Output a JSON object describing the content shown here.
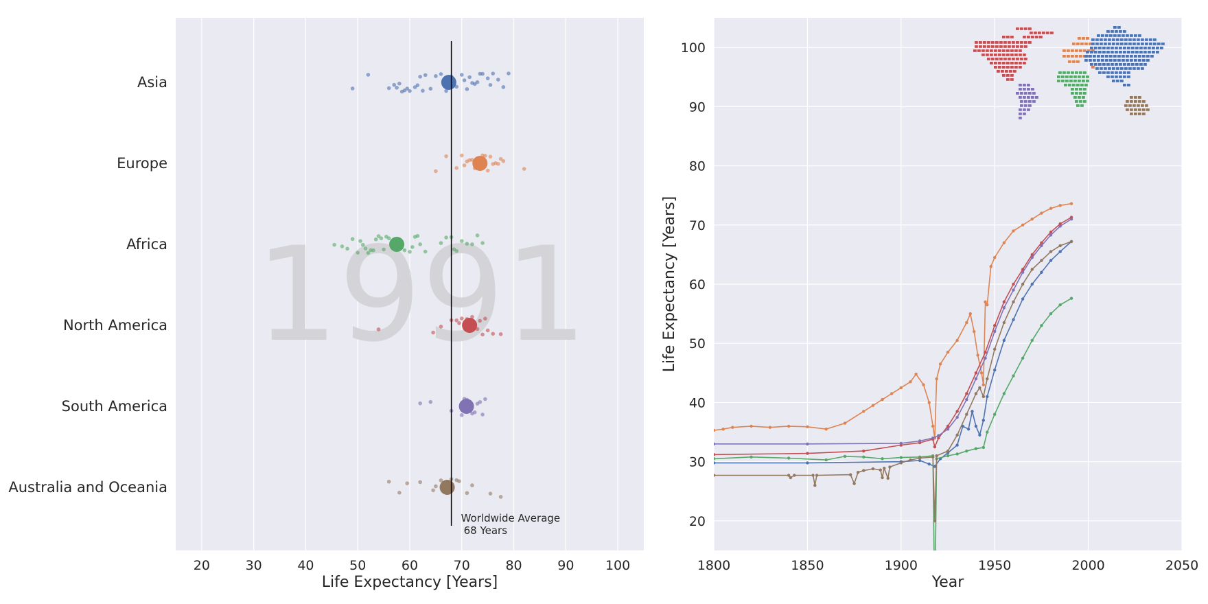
{
  "chart_data": [
    {
      "type": "scatter",
      "subtype": "strip-plot",
      "watermark": "1991",
      "xlabel": "Life Expectancy [Years]",
      "ylabel": "",
      "xlim": [
        15,
        105
      ],
      "xticks": [
        "20",
        "30",
        "40",
        "50",
        "60",
        "70",
        "80",
        "90",
        "100"
      ],
      "grid": true,
      "categories": [
        "Asia",
        "Europe",
        "Africa",
        "North America",
        "South America",
        "Australia and Oceania"
      ],
      "colors": [
        "#4c72b0",
        "#dd8452",
        "#55a868",
        "#c44e52",
        "#8172b3",
        "#937860"
      ],
      "means": [
        67.5,
        73.5,
        57.5,
        71.5,
        70.9,
        67.2
      ],
      "points": [
        [
          49,
          52,
          56,
          57,
          57.5,
          58,
          58.5,
          59,
          59.5,
          60,
          61,
          61.5,
          62,
          62.5,
          63,
          64,
          65,
          66,
          67,
          68,
          69,
          70,
          70.5,
          71,
          71.5,
          72,
          72.5,
          73,
          73.5,
          74,
          75,
          75.5,
          76,
          77,
          78,
          79
        ],
        [
          65,
          67,
          69,
          70,
          70.5,
          71,
          71.5,
          72,
          72.5,
          73,
          73.5,
          74,
          74.5,
          75,
          75.5,
          76,
          76.5,
          77,
          77.5,
          78,
          82
        ],
        [
          45.5,
          47,
          48,
          49,
          50,
          50.5,
          51,
          51.5,
          52,
          52.5,
          53,
          53.5,
          54,
          54.5,
          55,
          55.5,
          56,
          56.5,
          57,
          58,
          59,
          60,
          60.5,
          61,
          61.5,
          62,
          63,
          66,
          67,
          68,
          68.5,
          69,
          70,
          71,
          72,
          73,
          74
        ],
        [
          54,
          64.5,
          66,
          68,
          69,
          69.5,
          70,
          70.5,
          71,
          71.5,
          72,
          72.5,
          73,
          73.5,
          74,
          74.5,
          75,
          76,
          77.5
        ],
        [
          62,
          64,
          68,
          70,
          70.5,
          71,
          71.5,
          72,
          72.5,
          73,
          73.5,
          74,
          74.5
        ],
        [
          56,
          58,
          59.5,
          62,
          64.5,
          65,
          66,
          67,
          68,
          69,
          69.5,
          71,
          72,
          75.5,
          77.5
        ]
      ],
      "reference_line": {
        "x": 68,
        "label_line1": "Worldwide Average",
        "label_line2": "68 Years"
      }
    },
    {
      "type": "line",
      "xlabel": "Year",
      "ylabel": "Life Expectancy [Years]",
      "xlim": [
        1800,
        2050
      ],
      "ylim": [
        15,
        105
      ],
      "xticks": [
        "1800",
        "1850",
        "1900",
        "1950",
        "2000",
        "2050"
      ],
      "yticks": [
        "20",
        "30",
        "40",
        "50",
        "60",
        "70",
        "80",
        "90",
        "100"
      ],
      "grid": true,
      "legend": "inset world map, top-right (continent shapes in series colors)",
      "series": [
        {
          "color": "#4c72b0",
          "points": [
            [
              1800,
              29.8
            ],
            [
              1850,
              29.8
            ],
            [
              1900,
              30.0
            ],
            [
              1910,
              30.2
            ],
            [
              1915,
              29.6
            ],
            [
              1918,
              29.2
            ],
            [
              1921,
              30.5
            ],
            [
              1925,
              31.5
            ],
            [
              1930,
              32.8
            ],
            [
              1933,
              36.0
            ],
            [
              1936,
              35.5
            ],
            [
              1938,
              38.5
            ],
            [
              1940,
              36.0
            ],
            [
              1942,
              34.5
            ],
            [
              1944,
              37.0
            ],
            [
              1946,
              41.0
            ],
            [
              1950,
              45.5
            ],
            [
              1955,
              50.5
            ],
            [
              1960,
              54.0
            ],
            [
              1965,
              57.5
            ],
            [
              1970,
              60.0
            ],
            [
              1975,
              62.0
            ],
            [
              1980,
              64.0
            ],
            [
              1985,
              65.5
            ],
            [
              1991,
              67.2
            ]
          ]
        },
        {
          "color": "#dd8452",
          "points": [
            [
              1800,
              35.3
            ],
            [
              1805,
              35.5
            ],
            [
              1810,
              35.8
            ],
            [
              1820,
              36.0
            ],
            [
              1830,
              35.8
            ],
            [
              1840,
              36.0
            ],
            [
              1850,
              35.9
            ],
            [
              1860,
              35.5
            ],
            [
              1870,
              36.5
            ],
            [
              1880,
              38.5
            ],
            [
              1885,
              39.5
            ],
            [
              1890,
              40.5
            ],
            [
              1895,
              41.5
            ],
            [
              1900,
              42.5
            ],
            [
              1905,
              43.5
            ],
            [
              1908,
              44.8
            ],
            [
              1912,
              43.0
            ],
            [
              1915,
              40.0
            ],
            [
              1917,
              36.0
            ],
            [
              1918,
              34.0
            ],
            [
              1919,
              44.0
            ],
            [
              1921,
              46.5
            ],
            [
              1925,
              48.5
            ],
            [
              1930,
              50.5
            ],
            [
              1935,
              53.5
            ],
            [
              1937,
              55.0
            ],
            [
              1939,
              52.0
            ],
            [
              1941,
              48.0
            ],
            [
              1943,
              45.0
            ],
            [
              1944,
              43.0
            ],
            [
              1945,
              57.0
            ],
            [
              1946,
              56.5
            ],
            [
              1948,
              63.0
            ],
            [
              1950,
              64.5
            ],
            [
              1955,
              67.0
            ],
            [
              1960,
              69.0
            ],
            [
              1965,
              70.0
            ],
            [
              1970,
              71.0
            ],
            [
              1975,
              72.0
            ],
            [
              1980,
              72.8
            ],
            [
              1985,
              73.3
            ],
            [
              1991,
              73.6
            ]
          ]
        },
        {
          "color": "#55a868",
          "points": [
            [
              1800,
              30.5
            ],
            [
              1820,
              30.8
            ],
            [
              1840,
              30.6
            ],
            [
              1860,
              30.3
            ],
            [
              1870,
              30.9
            ],
            [
              1880,
              30.8
            ],
            [
              1890,
              30.5
            ],
            [
              1900,
              30.7
            ],
            [
              1910,
              30.8
            ],
            [
              1917,
              31.0
            ],
            [
              1918,
              5.0
            ],
            [
              1919,
              30.5
            ],
            [
              1925,
              31.0
            ],
            [
              1930,
              31.3
            ],
            [
              1935,
              31.8
            ],
            [
              1940,
              32.2
            ],
            [
              1944,
              32.4
            ],
            [
              1946,
              35.0
            ],
            [
              1950,
              38.0
            ],
            [
              1955,
              41.5
            ],
            [
              1960,
              44.5
            ],
            [
              1965,
              47.5
            ],
            [
              1970,
              50.5
            ],
            [
              1975,
              53.0
            ],
            [
              1980,
              55.0
            ],
            [
              1985,
              56.5
            ],
            [
              1991,
              57.6
            ]
          ]
        },
        {
          "color": "#c44e52",
          "points": [
            [
              1800,
              31.2
            ],
            [
              1850,
              31.4
            ],
            [
              1880,
              31.8
            ],
            [
              1900,
              32.8
            ],
            [
              1910,
              33.2
            ],
            [
              1917,
              33.8
            ],
            [
              1918,
              32.5
            ],
            [
              1920,
              34.0
            ],
            [
              1925,
              36.0
            ],
            [
              1930,
              38.5
            ],
            [
              1935,
              41.5
            ],
            [
              1940,
              45.0
            ],
            [
              1945,
              48.5
            ],
            [
              1950,
              53.0
            ],
            [
              1955,
              57.0
            ],
            [
              1960,
              60.0
            ],
            [
              1965,
              62.5
            ],
            [
              1970,
              65.0
            ],
            [
              1975,
              67.0
            ],
            [
              1980,
              68.8
            ],
            [
              1985,
              70.2
            ],
            [
              1991,
              71.3
            ]
          ]
        },
        {
          "color": "#8172b3",
          "points": [
            [
              1800,
              33.0
            ],
            [
              1850,
              33.0
            ],
            [
              1900,
              33.1
            ],
            [
              1910,
              33.5
            ],
            [
              1917,
              34.0
            ],
            [
              1920,
              34.4
            ],
            [
              1925,
              35.5
            ],
            [
              1930,
              37.5
            ],
            [
              1935,
              40.5
            ],
            [
              1940,
              44.0
            ],
            [
              1945,
              47.5
            ],
            [
              1950,
              52.0
            ],
            [
              1955,
              56.0
            ],
            [
              1960,
              59.0
            ],
            [
              1965,
              62.0
            ],
            [
              1970,
              64.5
            ],
            [
              1975,
              66.5
            ],
            [
              1980,
              68.3
            ],
            [
              1985,
              69.8
            ],
            [
              1991,
              71.0
            ]
          ]
        },
        {
          "color": "#937860",
          "points": [
            [
              1800,
              27.7
            ],
            [
              1840,
              27.7
            ],
            [
              1841,
              27.3
            ],
            [
              1843,
              27.7
            ],
            [
              1853,
              27.7
            ],
            [
              1854,
              26.0
            ],
            [
              1855,
              27.7
            ],
            [
              1873,
              27.8
            ],
            [
              1875,
              26.3
            ],
            [
              1877,
              28.2
            ],
            [
              1880,
              28.5
            ],
            [
              1885,
              28.8
            ],
            [
              1889,
              28.6
            ],
            [
              1890,
              27.3
            ],
            [
              1891,
              28.9
            ],
            [
              1893,
              27.2
            ],
            [
              1894,
              29.1
            ],
            [
              1900,
              29.8
            ],
            [
              1905,
              30.3
            ],
            [
              1910,
              30.6
            ],
            [
              1917,
              30.8
            ],
            [
              1918,
              20.0
            ],
            [
              1919,
              31.0
            ],
            [
              1925,
              31.8
            ],
            [
              1930,
              34.5
            ],
            [
              1935,
              38.0
            ],
            [
              1940,
              41.5
            ],
            [
              1942,
              42.5
            ],
            [
              1944,
              41.0
            ],
            [
              1946,
              44.0
            ],
            [
              1950,
              49.0
            ],
            [
              1955,
              53.5
            ],
            [
              1960,
              57.0
            ],
            [
              1965,
              60.0
            ],
            [
              1970,
              62.5
            ],
            [
              1975,
              64.0
            ],
            [
              1980,
              65.5
            ],
            [
              1985,
              66.5
            ],
            [
              1991,
              67.2
            ]
          ]
        }
      ]
    }
  ]
}
